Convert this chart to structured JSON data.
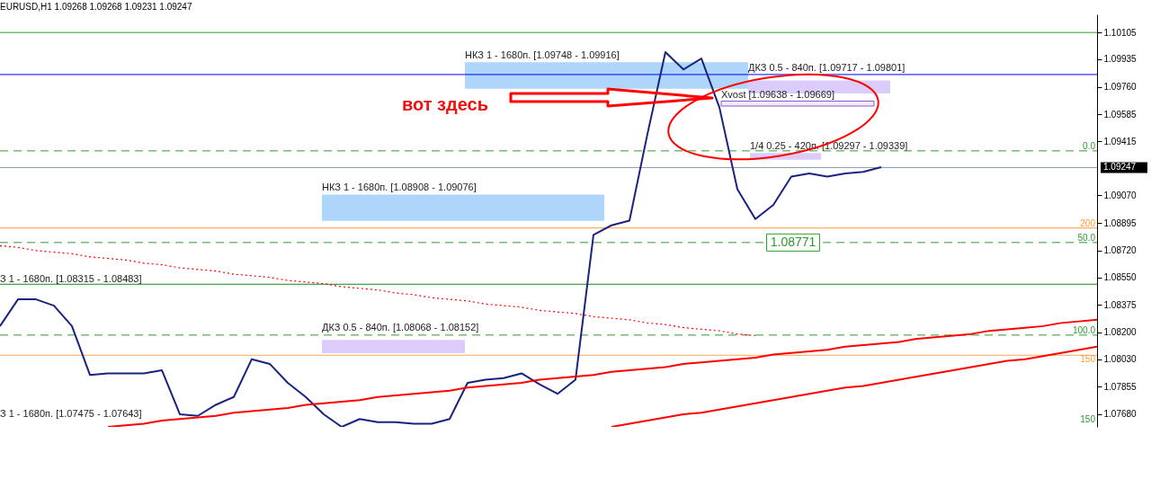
{
  "chart_data": {
    "type": "line",
    "title": "EURUSD,H1  1.09268 1.09268 1.09231 1.09247",
    "categories": [
      null,
      null,
      null,
      null,
      null,
      null,
      null,
      null,
      null,
      null,
      null,
      null,
      null,
      null,
      null,
      null,
      null,
      null,
      null,
      null,
      null,
      null,
      null,
      null,
      null,
      null,
      null,
      null,
      null,
      null,
      null,
      null,
      null,
      null,
      null,
      null,
      null,
      null,
      null,
      null,
      null,
      null,
      null,
      null,
      null,
      null,
      null,
      null,
      null,
      null,
      null,
      null,
      null,
      null,
      null,
      null,
      null,
      null,
      null,
      null,
      null,
      null
    ],
    "ylim": [
      1.076,
      1.1022
    ],
    "yticks": [
      {
        "value": 1.0768,
        "label": "1.07680"
      },
      {
        "value": 1.07855,
        "label": "1.07855"
      },
      {
        "value": 1.0803,
        "label": "1.08030"
      },
      {
        "value": 1.082,
        "label": "1.08200"
      },
      {
        "value": 1.08375,
        "label": "1.08375"
      },
      {
        "value": 1.0855,
        "label": "1.08550"
      },
      {
        "value": 1.0872,
        "label": "1.08720"
      },
      {
        "value": 1.08895,
        "label": "1.08895"
      },
      {
        "value": 1.0907,
        "label": "1.09070"
      },
      {
        "value": 1.09415,
        "label": "1.09415"
      },
      {
        "value": 1.09585,
        "label": "1.09585"
      },
      {
        "value": 1.0976,
        "label": "1.09760"
      },
      {
        "value": 1.09935,
        "label": "1.09935"
      },
      {
        "value": 1.10105,
        "label": "1.10105"
      }
    ],
    "tick_labels": "y",
    "series": [
      {
        "color": "#1a237e",
        "values": [
          1.0824,
          1.0841,
          1.0841,
          1.0837,
          1.0824,
          1.0793,
          1.0794,
          1.0794,
          1.0794,
          1.0796,
          1.0768,
          1.0767,
          1.0774,
          1.0779,
          1.0803,
          1.08,
          1.0788,
          1.0779,
          1.0768,
          1.076,
          1.0765,
          1.0763,
          1.0763,
          1.0762,
          1.0762,
          1.0765,
          1.0788,
          1.079,
          1.0791,
          1.0794,
          1.0787,
          1.0781,
          1.079,
          1.0882,
          1.0888,
          1.0891,
          1.0946,
          1.0998,
          1.0987,
          1.0994,
          1.0963,
          1.0911,
          1.0892,
          1.0901,
          1.0919,
          1.0921,
          1.0919,
          1.0921,
          1.0922,
          1.0925,
          null,
          null,
          null,
          null,
          null,
          null,
          null,
          null,
          null,
          null,
          null,
          null
        ]
      },
      {
        "type": "line",
        "color": "#ff0000",
        "values": [
          null,
          null,
          null,
          null,
          null,
          null,
          1.076,
          1.0761,
          1.0762,
          1.0764,
          1.0765,
          1.0766,
          1.0767,
          1.0769,
          1.077,
          1.0771,
          1.0772,
          1.0774,
          1.0775,
          1.0776,
          1.0777,
          1.0779,
          1.078,
          1.0781,
          1.0782,
          1.0783,
          1.0785,
          1.0786,
          1.0787,
          1.0788,
          1.079,
          1.0791,
          1.0792,
          1.0793,
          1.0795,
          1.0796,
          1.0797,
          1.0798,
          1.08,
          1.0801,
          1.0802,
          1.0803,
          1.0804,
          1.0806,
          1.0807,
          1.0808,
          1.0809,
          1.0811,
          1.0812,
          1.0813,
          1.0814,
          1.0816,
          1.0817,
          1.0818,
          1.0819,
          1.0821,
          1.0822,
          1.0823,
          1.0824,
          1.0826,
          1.0827,
          1.0828
        ]
      },
      {
        "type": "line",
        "color": "#ff0000",
        "values": [
          null,
          null,
          null,
          null,
          null,
          null,
          null,
          null,
          null,
          null,
          null,
          null,
          null,
          null,
          null,
          null,
          null,
          null,
          null,
          null,
          null,
          null,
          null,
          null,
          null,
          null,
          null,
          null,
          null,
          null,
          null,
          null,
          null,
          null,
          1.076,
          1.0762,
          1.0764,
          1.0766,
          1.0768,
          1.0769,
          1.0771,
          1.0773,
          1.0775,
          1.0777,
          1.0779,
          1.0781,
          1.0783,
          1.0785,
          1.0786,
          1.0788,
          1.079,
          1.0792,
          1.0794,
          1.0796,
          1.0798,
          1.08,
          1.0802,
          1.0803,
          1.0805,
          1.0807,
          1.0809,
          1.0811
        ]
      },
      {
        "type": "line",
        "color": "#ff0000",
        "line_style": "dotted",
        "values": [
          1.0875,
          1.0874,
          1.0872,
          1.0871,
          1.087,
          1.0868,
          1.0867,
          1.0866,
          1.0864,
          1.0863,
          1.0861,
          1.086,
          1.0859,
          1.0857,
          1.0856,
          1.0855,
          1.0853,
          1.0852,
          1.0851,
          1.0849,
          1.0848,
          1.0847,
          1.0845,
          1.0844,
          1.0842,
          1.0841,
          1.084,
          1.0838,
          1.0837,
          1.0836,
          1.0834,
          1.0833,
          1.0832,
          1.083,
          1.0829,
          1.0828,
          1.0826,
          1.0825,
          1.0823,
          1.0822,
          1.0821,
          1.0819,
          1.0818,
          null,
          null,
          null,
          null,
          null,
          null,
          null,
          null,
          null,
          null,
          null,
          null,
          null,
          null,
          null,
          null,
          null,
          null,
          null
        ]
      }
    ],
    "ref_lines": [
      {
        "axis": "y",
        "value": 1.10105,
        "color": "#2e9a2e",
        "line_style": "solid"
      },
      {
        "axis": "y",
        "value": 1.09838,
        "color": "#0000ff",
        "line_style": "solid"
      },
      {
        "axis": "y",
        "value": 1.09353,
        "color": "#2e9a2e",
        "line_style": "dashed"
      },
      {
        "axis": "y",
        "value": 1.09247,
        "label": "1.09247",
        "color": "#8c9cb0",
        "line_style": "solid"
      },
      {
        "axis": "y",
        "value": 1.08863,
        "color": "#ff9933",
        "line_style": "solid"
      },
      {
        "axis": "y",
        "value": 1.08771,
        "color": "#2e9a2e",
        "line_style": "dashed"
      },
      {
        "axis": "y",
        "value": 1.08506,
        "color": "#138a13",
        "line_style": "solid"
      },
      {
        "axis": "y",
        "value": 1.08183,
        "color": "#2e9a2e",
        "line_style": "dashed"
      },
      {
        "axis": "y",
        "value": 1.08055,
        "color": "#ffaa55",
        "line_style": "solid"
      }
    ],
    "bands": [
      {
        "axis": "y",
        "from": 1.09748,
        "to": 1.09916,
        "label": "НКЗ 1 - 1680п. [1.09748 - 1.09916]",
        "color": "#aad4fb"
      },
      {
        "axis": "y",
        "from": 1.09717,
        "to": 1.09801,
        "label": "ДКЗ 0.5 - 840п. [1.09717 - 1.09801]",
        "color": "#d9c9fb"
      },
      {
        "axis": "y",
        "from": 1.09638,
        "to": 1.09669,
        "label": "Xvost [1.09638 - 1.09669]",
        "color": "#8a5ac8"
      },
      {
        "axis": "y",
        "from": 1.09297,
        "to": 1.09339,
        "label": "1/4 0.25 - 420п. [1.09297 - 1.09339]",
        "color": "#d9c9fb"
      },
      {
        "axis": "y",
        "from": 1.08908,
        "to": 1.09076,
        "label": "НКЗ 1 - 1680п. [1.08908 - 1.09076]",
        "color": "#aad4fb"
      },
      {
        "axis": "y",
        "from": 1.08068,
        "to": 1.08152,
        "label": "ДКЗ 0.5 - 840п. [1.08068 - 1.08152]",
        "color": "#d9c9fb"
      }
    ],
    "annotations": [
      "вот здесь",
      {
        "text": "1.08771",
        "y": 1.08771
      },
      {
        "text": "0.0",
        "y": 1.09353
      },
      {
        "text": "200",
        "y": 1.08863
      },
      {
        "text": "50.0",
        "y": 1.08771
      },
      {
        "text": "100.0",
        "y": 1.08183
      },
      {
        "text": "150",
        "y": 1.08055
      },
      "150",
      {
        "text": "З 1 - 1680п. [1.08315 - 1.08483]",
        "y": 1.0851
      },
      "З 1 - 1680п. [1.07475 - 1.07643]"
    ]
  }
}
